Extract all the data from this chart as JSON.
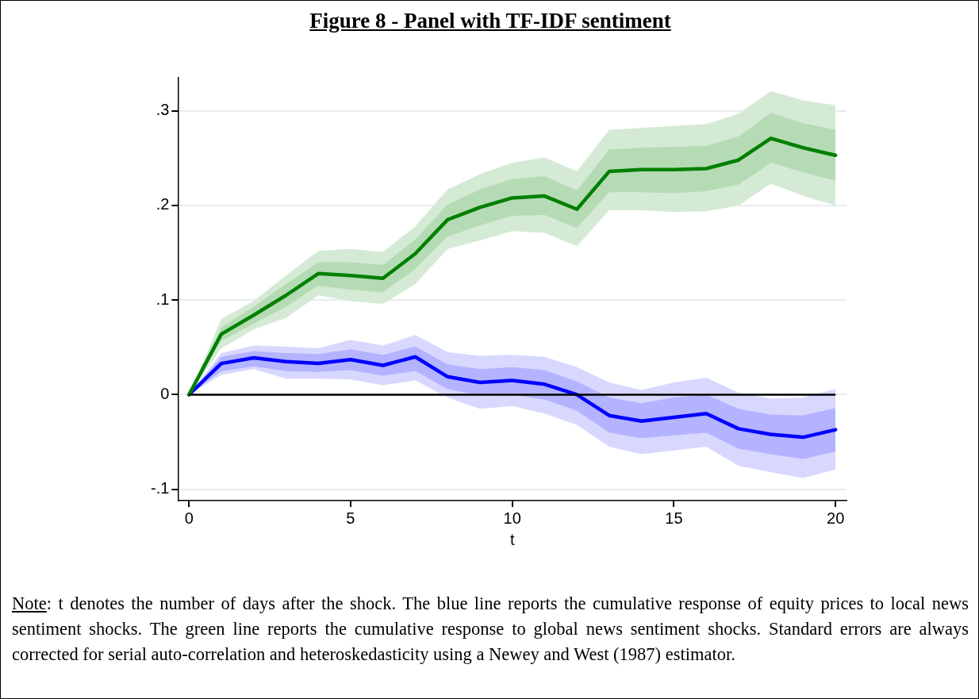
{
  "chart_data": {
    "type": "line",
    "title": "Figure 8 - Panel with TF-IDF sentiment",
    "xlabel": "t",
    "x": [
      0,
      1,
      2,
      3,
      4,
      5,
      6,
      7,
      8,
      9,
      10,
      11,
      12,
      13,
      14,
      15,
      16,
      17,
      18,
      19,
      20
    ],
    "xlim": [
      -0.34,
      20.34
    ],
    "xticks": [
      0,
      5,
      10,
      15,
      20
    ],
    "ylim": [
      -0.112,
      0.335
    ],
    "yticks": [
      {
        "value": -0.1,
        "label": "-.1"
      },
      0,
      {
        "value": 0.1,
        "label": ".1"
      },
      {
        "value": 0.2,
        "label": ".2"
      },
      {
        "value": 0.3,
        "label": ".3"
      }
    ],
    "grid": "y",
    "legend": false,
    "marker": "none",
    "line_style": "solid",
    "ref_lines": [
      {
        "axis": "y",
        "value": 0,
        "color": "#000000"
      }
    ],
    "series": [
      {
        "color": "#d8d8ff",
        "values": [
          null,
          null,
          null,
          null,
          null,
          null,
          null,
          null,
          null,
          null,
          null,
          null,
          null,
          null,
          null,
          null,
          null,
          null,
          null,
          null,
          null
        ],
        "lower": [
          0,
          0.021,
          0.027,
          0.017,
          0.017,
          0.016,
          0.01,
          0.015,
          -0.003,
          -0.015,
          -0.012,
          -0.02,
          -0.032,
          -0.055,
          -0.063,
          -0.059,
          -0.055,
          -0.075,
          -0.082,
          -0.088,
          -0.079
        ],
        "upper": [
          0,
          0.044,
          0.052,
          0.051,
          0.049,
          0.058,
          0.052,
          0.063,
          0.045,
          0.041,
          0.042,
          0.04,
          0.029,
          0.013,
          0.005,
          0.013,
          0.018,
          0.002,
          -0.004,
          -0.003,
          0.006
        ]
      },
      {
        "color": "#b3b3ff",
        "values": [
          null,
          null,
          null,
          null,
          null,
          null,
          null,
          null,
          null,
          null,
          null,
          null,
          null,
          null,
          null,
          null,
          null,
          null,
          null,
          null,
          null
        ],
        "lower": [
          0,
          0.025,
          0.03,
          0.025,
          0.024,
          0.026,
          0.02,
          0.025,
          0.006,
          -0.001,
          0,
          -0.005,
          -0.017,
          -0.04,
          -0.046,
          -0.043,
          -0.04,
          -0.057,
          -0.063,
          -0.068,
          -0.06
        ],
        "upper": [
          0,
          0.04,
          0.046,
          0.044,
          0.043,
          0.048,
          0.042,
          0.051,
          0.032,
          0.027,
          0.029,
          0.026,
          0.014,
          -0.003,
          -0.009,
          -0.003,
          0,
          -0.015,
          -0.021,
          -0.022,
          -0.014
        ]
      },
      {
        "color": "#d5ead5",
        "values": [
          null,
          null,
          null,
          null,
          null,
          null,
          null,
          null,
          null,
          null,
          null,
          null,
          null,
          null,
          null,
          null,
          null,
          null,
          null,
          null,
          null
        ],
        "lower": [
          0,
          0.049,
          0.069,
          0.081,
          0.105,
          0.099,
          0.096,
          0.117,
          0.154,
          0.163,
          0.173,
          0.171,
          0.157,
          0.195,
          0.195,
          0.193,
          0.194,
          0.2,
          0.223,
          0.21,
          0.2
        ],
        "upper": [
          0,
          0.08,
          0.099,
          0.126,
          0.152,
          0.154,
          0.151,
          0.178,
          0.217,
          0.233,
          0.245,
          0.251,
          0.236,
          0.28,
          0.282,
          0.284,
          0.286,
          0.297,
          0.321,
          0.311,
          0.306
        ]
      },
      {
        "color": "#b5dbb5",
        "values": [
          null,
          null,
          null,
          null,
          null,
          null,
          null,
          null,
          null,
          null,
          null,
          null,
          null,
          null,
          null,
          null,
          null,
          null,
          null,
          null,
          null
        ],
        "lower": [
          0,
          0.057,
          0.075,
          0.093,
          0.115,
          0.111,
          0.108,
          0.133,
          0.167,
          0.179,
          0.189,
          0.19,
          0.176,
          0.214,
          0.214,
          0.213,
          0.215,
          0.222,
          0.245,
          0.235,
          0.226
        ],
        "upper": [
          0,
          0.071,
          0.093,
          0.117,
          0.14,
          0.14,
          0.137,
          0.164,
          0.201,
          0.217,
          0.228,
          0.231,
          0.216,
          0.259,
          0.261,
          0.262,
          0.263,
          0.273,
          0.298,
          0.287,
          0.28
        ]
      },
      {
        "color": "#0000ff",
        "values": [
          0,
          0.033,
          0.039,
          0.035,
          0.033,
          0.037,
          0.031,
          0.04,
          0.019,
          0.013,
          0.015,
          0.011,
          0,
          -0.022,
          -0.028,
          -0.024,
          -0.02,
          -0.036,
          -0.042,
          -0.045,
          -0.037
        ]
      },
      {
        "color": "#008000",
        "values": [
          0,
          0.064,
          0.084,
          0.105,
          0.128,
          0.126,
          0.123,
          0.149,
          0.185,
          0.198,
          0.208,
          0.21,
          0.196,
          0.236,
          0.238,
          0.238,
          0.239,
          0.248,
          0.271,
          0.261,
          0.253
        ]
      }
    ],
    "annotations": [
      "Note: t denotes the number of days after the shock. The blue line reports the cumulative response of equity prices to local news sentiment shocks. The green line reports the cumulative response to global news sentiment shocks. Standard errors are always corrected for serial auto-correlation and heteroskedasticity using a Newey and West (1987) estimator."
    ]
  }
}
